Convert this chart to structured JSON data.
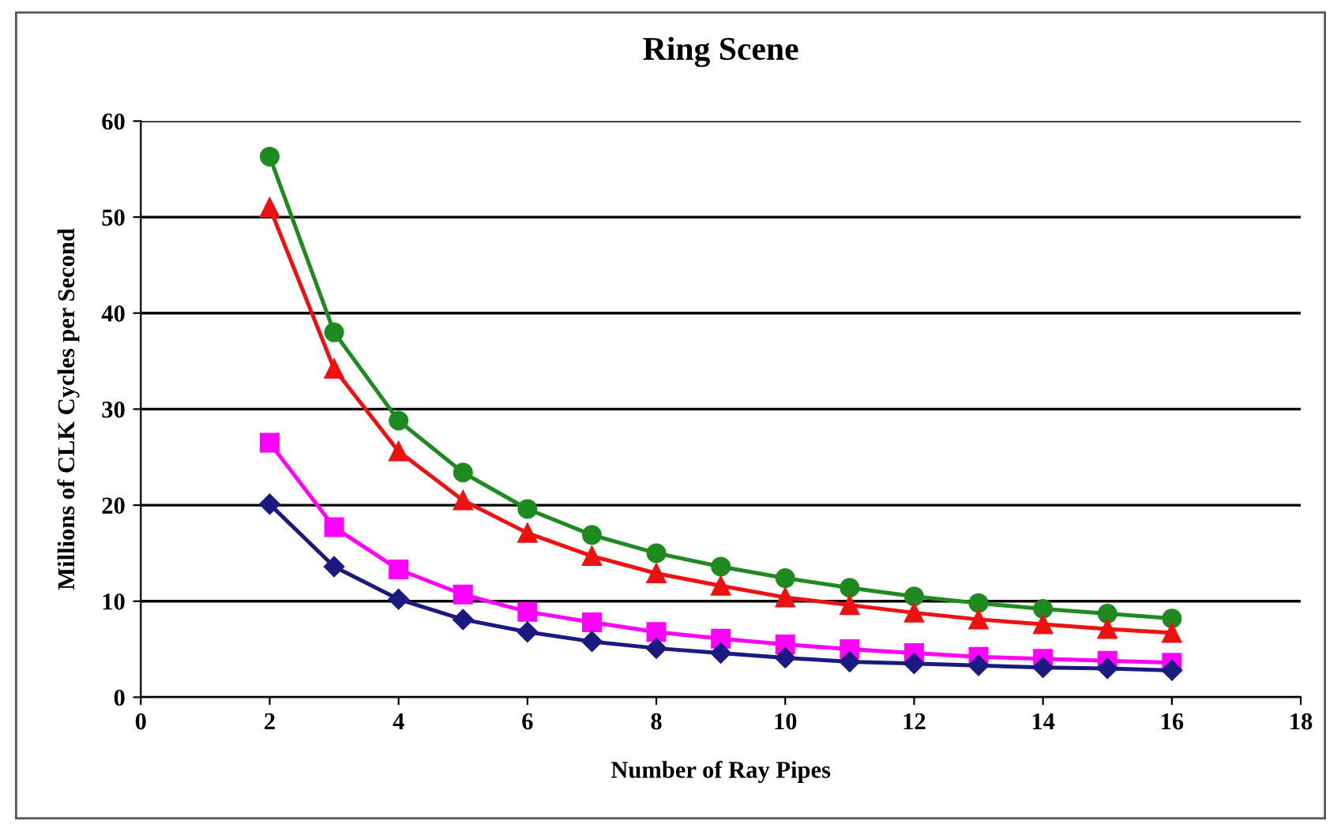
{
  "chart_data": {
    "type": "line",
    "title": "Ring Scene",
    "xlabel": "Number of Ray Pipes",
    "ylabel": "Millions of CLK Cycles per Second",
    "x": [
      2,
      3,
      4,
      5,
      6,
      7,
      8,
      9,
      10,
      11,
      12,
      13,
      14,
      15,
      16
    ],
    "series": [
      {
        "color": "#1f8a1f",
        "marker": "circle",
        "values": [
          56.3,
          38,
          28.8,
          23.4,
          19.6,
          16.9,
          15,
          13.6,
          12.4,
          11.4,
          10.5,
          9.8,
          9.2,
          8.7,
          8.2
        ]
      },
      {
        "color": "#ee1111",
        "marker": "triangle",
        "values": [
          51,
          34.2,
          25.6,
          20.5,
          17.1,
          14.7,
          12.9,
          11.6,
          10.4,
          9.6,
          8.8,
          8.1,
          7.6,
          7.1,
          6.7
        ]
      },
      {
        "color": "#ff00ff",
        "marker": "square",
        "values": [
          26.5,
          17.7,
          13.3,
          10.7,
          8.9,
          7.8,
          6.8,
          6.1,
          5.5,
          5.0,
          4.6,
          4.2,
          4.0,
          3.8,
          3.6
        ]
      },
      {
        "color": "#1a1a80",
        "marker": "diamond",
        "values": [
          20.1,
          13.6,
          10.2,
          8.1,
          6.8,
          5.8,
          5.1,
          4.6,
          4.1,
          3.7,
          3.5,
          3.3,
          3.1,
          3.0,
          2.8
        ]
      }
    ],
    "xlim": [
      0,
      18
    ],
    "xticks": [
      0,
      2,
      4,
      6,
      8,
      10,
      12,
      14,
      16,
      18
    ],
    "ylim": [
      0,
      60
    ],
    "yticks": [
      0,
      10,
      20,
      30,
      40,
      50,
      60
    ],
    "grid": "y",
    "legend": false
  }
}
